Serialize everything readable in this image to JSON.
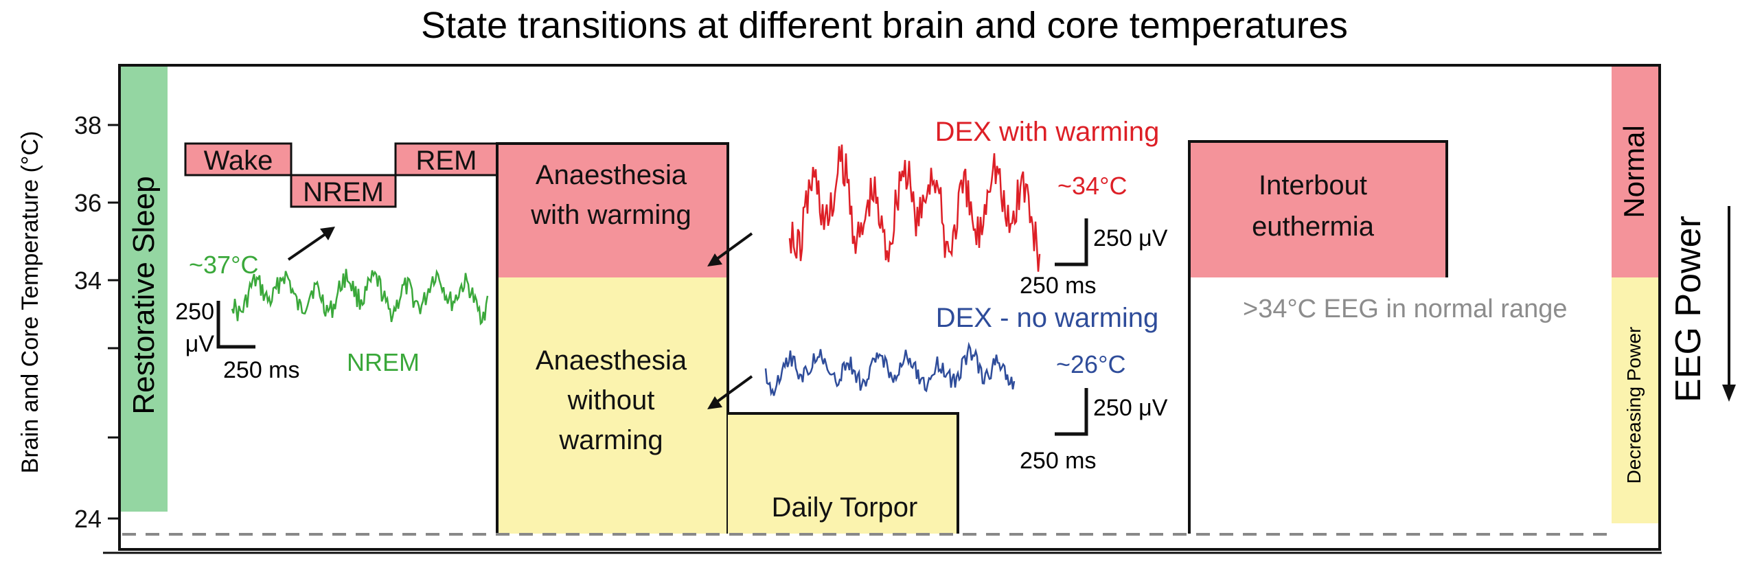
{
  "title": "State transitions at different brain and core temperatures",
  "y_axis": {
    "label": "Brain and Core Temperature (°C)",
    "ticks": [
      "38",
      "36",
      "34",
      "24"
    ]
  },
  "left_bar_label": "Restorative Sleep",
  "sleep_stages": {
    "wake": "Wake",
    "nrem": "NREM",
    "rem": "REM"
  },
  "blocks": {
    "anaesthesia_with_warming": [
      "Anaesthesia",
      "with warming"
    ],
    "anaesthesia_without_warming": [
      "Anaesthesia",
      "without",
      "warming"
    ],
    "daily_torpor": "Daily Torpor",
    "interbout_euthermia": [
      "Interbout",
      "euthermia"
    ]
  },
  "traces": {
    "nrem": {
      "temp": "~37°C",
      "name": "NREM",
      "scale_v": [
        "250",
        "μV"
      ],
      "scale_t": "250 ms"
    },
    "dex_warm": {
      "name": "DEX with warming",
      "temp": "~34°C",
      "scale_v": "250 μV",
      "scale_t": "250 ms"
    },
    "dex_nowarm": {
      "name": "DEX - no warming",
      "temp": "~26°C",
      "scale_v": "250 μV",
      "scale_t": "250 ms"
    }
  },
  "eeg_note": ">34°C EEG in normal range",
  "right_bar": {
    "normal": "Normal",
    "decreasing": "Decreasing Power"
  },
  "eeg_power_label": "EEG Power",
  "colors": {
    "pink": "#f4939a",
    "yellow": "#fbf3ae",
    "green_bar": "#94d6a2",
    "nrem_trace": "#3aa83a",
    "dex_warm_trace": "#dd1f26",
    "dex_nowarm_trace": "#2e4c9a",
    "grey_text": "#8c8c8c"
  }
}
